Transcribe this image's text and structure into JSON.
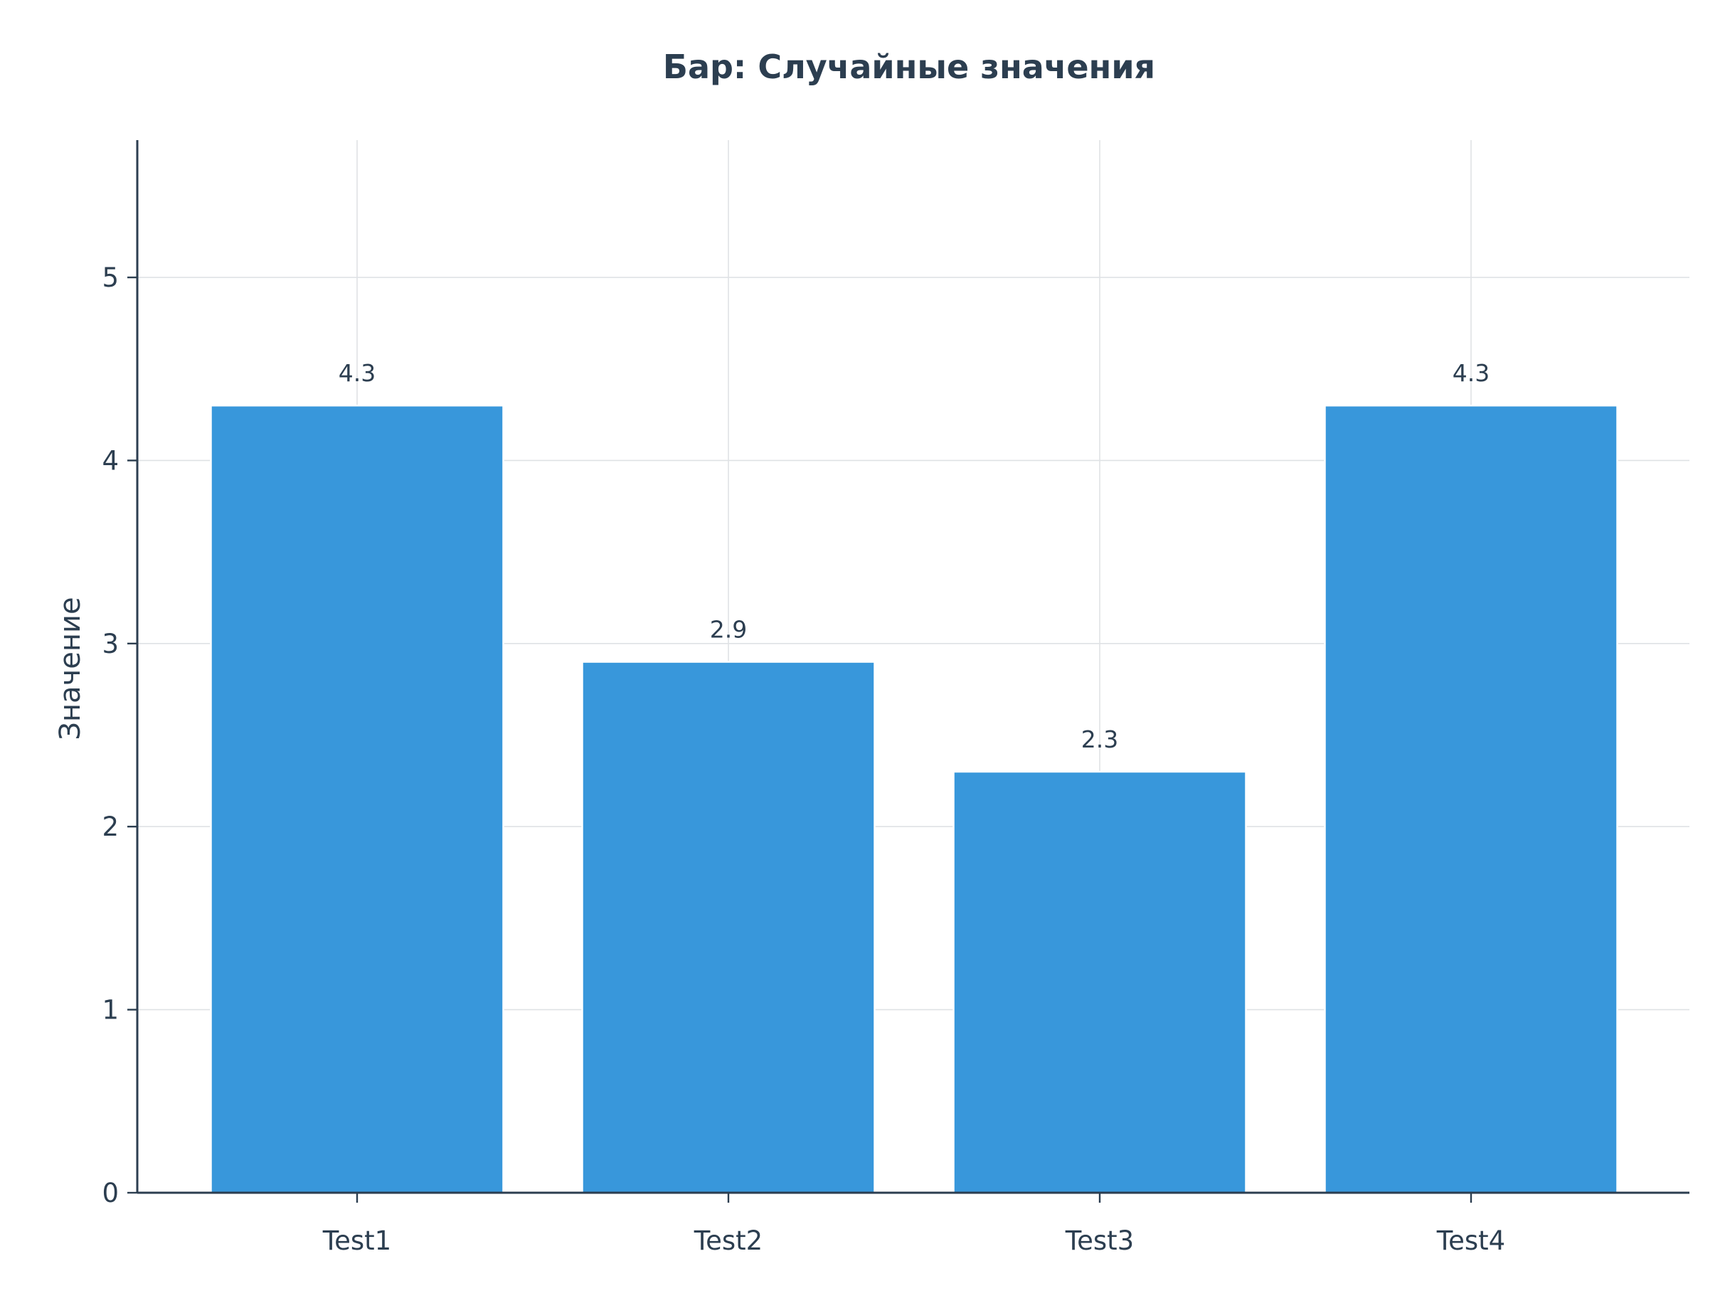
{
  "chart_data": {
    "type": "bar",
    "title": "Бар: Случайные значения",
    "xlabel": "",
    "ylabel": "Значение",
    "categories": [
      "Test1",
      "Test2",
      "Test3",
      "Test4"
    ],
    "values": [
      4.3,
      2.9,
      2.3,
      4.3
    ],
    "data_labels": [
      "4.3",
      "2.9",
      "2.3",
      "4.3"
    ],
    "ylim": [
      0,
      5.75
    ],
    "yticks": [
      0,
      1,
      2,
      3,
      4,
      5
    ],
    "ytick_labels": [
      "0",
      "1",
      "2",
      "3",
      "4",
      "5"
    ],
    "grid": true,
    "colors": {
      "bar": "#3897db",
      "text": "#2c3e50",
      "axis": "#2c3e50",
      "grid": "#dfe2e5"
    }
  }
}
